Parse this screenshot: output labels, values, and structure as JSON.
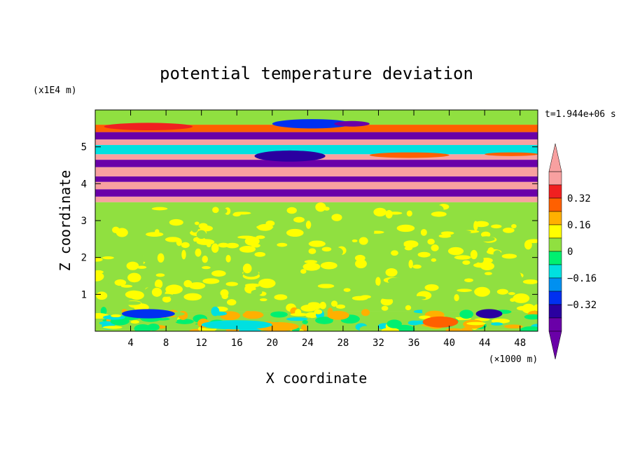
{
  "chart_data": {
    "type": "heatmap",
    "title": "potential temperature deviation",
    "xlabel": "X coordinate",
    "ylabel": "Z coordinate",
    "x_unit": "(×1000 m)",
    "y_unit": "(x1E4 m)",
    "time_label": "t=1.944e+06 s",
    "xlim": [
      0,
      50
    ],
    "ylim": [
      0,
      6
    ],
    "x_ticks": [
      4,
      8,
      12,
      16,
      20,
      24,
      28,
      32,
      36,
      40,
      44,
      48
    ],
    "y_ticks": [
      1,
      2,
      3,
      4,
      5
    ],
    "colorbar": {
      "levels": [
        -0.48,
        -0.4,
        -0.32,
        -0.24,
        -0.16,
        -0.08,
        0,
        0.08,
        0.16,
        0.24,
        0.32,
        0.4,
        0.48
      ],
      "labels": [
        {
          "text": "0.32",
          "value": 0.32
        },
        {
          "text": "0.16",
          "value": 0.16
        },
        {
          "text": "0",
          "value": 0
        },
        {
          "text": "−0.16",
          "value": -0.16
        },
        {
          "text": "−0.32",
          "value": -0.32
        }
      ],
      "colors": [
        "#6a00a8",
        "#2a00a0",
        "#0030f0",
        "#0090f0",
        "#00e0e0",
        "#00f070",
        "#90e040",
        "#ffff00",
        "#ffb000",
        "#ff6000",
        "#f02020",
        "#f8a0a0"
      ],
      "over_color": "#f8a0a0",
      "under_color": "#6a00a8"
    },
    "bands": [
      {
        "z": [
          0.0,
          0.55
        ],
        "value": 0.0,
        "note": "mixed field"
      },
      {
        "z": [
          0.55,
          3.5
        ],
        "value": 0.02
      },
      {
        "z": [
          3.5,
          3.65
        ],
        "value": 0.5
      },
      {
        "z": [
          3.65,
          3.85
        ],
        "value": -0.5
      },
      {
        "z": [
          3.85,
          4.05
        ],
        "value": 0.5
      },
      {
        "z": [
          4.05,
          4.2
        ],
        "value": -0.5
      },
      {
        "z": [
          4.2,
          4.45
        ],
        "value": 0.5
      },
      {
        "z": [
          4.45,
          4.65
        ],
        "value": -0.5
      },
      {
        "z": [
          4.65,
          4.8
        ],
        "value": 0.5
      },
      {
        "z": [
          4.8,
          5.05
        ],
        "value": -0.1
      },
      {
        "z": [
          5.05,
          5.2
        ],
        "value": 0.5
      },
      {
        "z": [
          5.2,
          5.4
        ],
        "value": -0.5
      },
      {
        "z": [
          5.4,
          5.6
        ],
        "value": 0.3
      },
      {
        "z": [
          5.6,
          6.0
        ],
        "value": 0.03
      }
    ],
    "patches": [
      {
        "x": [
          1,
          11
        ],
        "z": [
          5.45,
          5.65
        ],
        "value": 0.35
      },
      {
        "x": [
          20,
          29
        ],
        "z": [
          5.5,
          5.75
        ],
        "value": -0.3
      },
      {
        "x": [
          27,
          31
        ],
        "z": [
          5.55,
          5.7
        ],
        "value": -0.45
      },
      {
        "x": [
          18,
          26
        ],
        "z": [
          4.6,
          4.9
        ],
        "value": -0.35
      },
      {
        "x": [
          31,
          40
        ],
        "z": [
          4.7,
          4.85
        ],
        "value": 0.3
      },
      {
        "x": [
          44,
          50
        ],
        "z": [
          4.75,
          4.85
        ],
        "value": 0.3
      },
      {
        "x": [
          3,
          9
        ],
        "z": [
          0.35,
          0.6
        ],
        "value": -0.3
      },
      {
        "x": [
          18,
          23
        ],
        "z": [
          0.0,
          0.25
        ],
        "value": 0.2
      },
      {
        "x": [
          37,
          41
        ],
        "z": [
          0.1,
          0.4
        ],
        "value": 0.25
      },
      {
        "x": [
          43,
          46
        ],
        "z": [
          0.35,
          0.6
        ],
        "value": -0.35
      },
      {
        "x": [
          12,
          20
        ],
        "z": [
          0.05,
          0.3
        ],
        "value": -0.1
      }
    ]
  }
}
